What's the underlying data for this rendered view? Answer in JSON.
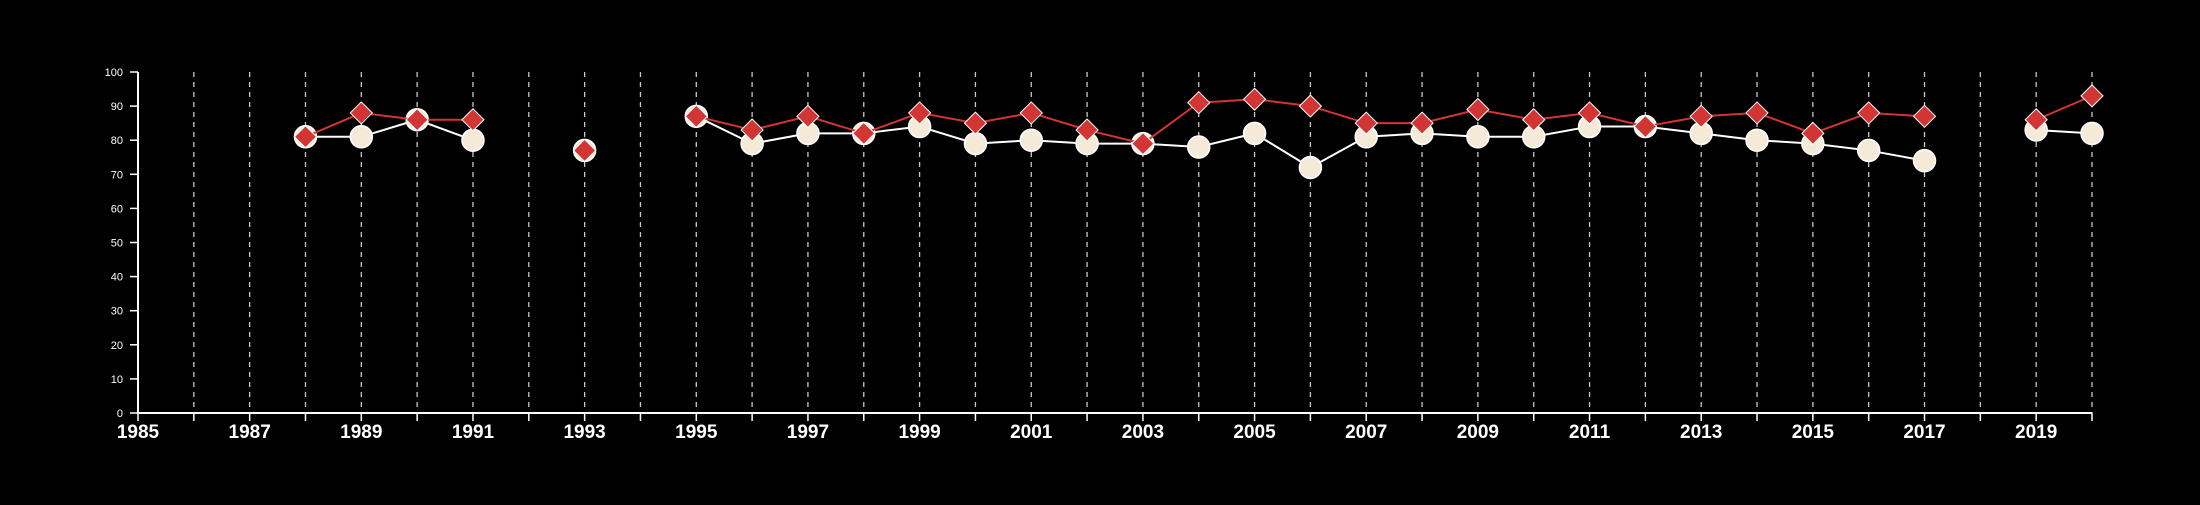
{
  "chart_data": {
    "type": "line",
    "title": "",
    "xlabel": "",
    "ylabel": "",
    "xlim": [
      1985,
      2020
    ],
    "ylim": [
      0,
      100
    ],
    "x_tick_labels": [
      "1985",
      "1987",
      "1989",
      "1991",
      "1993",
      "1995",
      "1997",
      "1999",
      "2001",
      "2003",
      "2005",
      "2007",
      "2009",
      "2011",
      "2013",
      "2015",
      "2017",
      "2019"
    ],
    "y_tick_labels": [
      "0",
      "10",
      "20",
      "30",
      "40",
      "50",
      "60",
      "70",
      "80",
      "90",
      "100"
    ],
    "grid": "vertical dashed lines at each year",
    "legend": "none",
    "series": [
      {
        "marker": "circle",
        "color": "#f5ead8",
        "line_color": "#ffffff",
        "points": [
          [
            1988,
            81
          ],
          [
            1989,
            81
          ],
          [
            1990,
            86
          ],
          [
            1991,
            80
          ],
          [
            1993,
            77
          ],
          [
            1995,
            87
          ],
          [
            1996,
            79
          ],
          [
            1997,
            82
          ],
          [
            1998,
            82
          ],
          [
            1999,
            84
          ],
          [
            2000,
            79
          ],
          [
            2001,
            80
          ],
          [
            2002,
            79
          ],
          [
            2003,
            79
          ],
          [
            2004,
            78
          ],
          [
            2005,
            82
          ],
          [
            2006,
            72
          ],
          [
            2007,
            81
          ],
          [
            2008,
            82
          ],
          [
            2009,
            81
          ],
          [
            2010,
            81
          ],
          [
            2011,
            84
          ],
          [
            2012,
            84
          ],
          [
            2013,
            82
          ],
          [
            2014,
            80
          ],
          [
            2015,
            79
          ],
          [
            2016,
            77
          ],
          [
            2017,
            74
          ],
          [
            2019,
            83
          ],
          [
            2020,
            82
          ]
        ]
      },
      {
        "marker": "diamond",
        "color": "#d33434",
        "line_color": "#d33434",
        "points": [
          [
            1988,
            81
          ],
          [
            1989,
            88
          ],
          [
            1990,
            86
          ],
          [
            1991,
            86
          ],
          [
            1993,
            77
          ],
          [
            1995,
            87
          ],
          [
            1996,
            83
          ],
          [
            1997,
            87
          ],
          [
            1998,
            82
          ],
          [
            1999,
            88
          ],
          [
            2000,
            85
          ],
          [
            2001,
            88
          ],
          [
            2002,
            83
          ],
          [
            2003,
            79
          ],
          [
            2004,
            91
          ],
          [
            2005,
            92
          ],
          [
            2006,
            90
          ],
          [
            2007,
            85
          ],
          [
            2008,
            85
          ],
          [
            2009,
            89
          ],
          [
            2010,
            86
          ],
          [
            2011,
            88
          ],
          [
            2012,
            84
          ],
          [
            2013,
            87
          ],
          [
            2014,
            88
          ],
          [
            2015,
            82
          ],
          [
            2016,
            88
          ],
          [
            2017,
            87
          ],
          [
            2019,
            86
          ],
          [
            2020,
            93
          ]
        ]
      }
    ]
  }
}
